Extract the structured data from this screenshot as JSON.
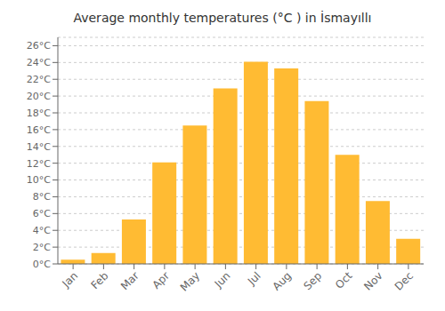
{
  "chart_data": {
    "type": "bar",
    "title": "Average monthly temperatures (°C ) in İsmayıllı",
    "categories": [
      "Jan",
      "Feb",
      "Mar",
      "Apr",
      "May",
      "Jun",
      "Jul",
      "Aug",
      "Sep",
      "Oct",
      "Nov",
      "Dec"
    ],
    "values": [
      0.5,
      1.3,
      5.3,
      12.1,
      16.5,
      20.9,
      24.1,
      23.3,
      19.4,
      13.0,
      7.5,
      3.0
    ],
    "color": "#FFBB33",
    "ylim": [
      0,
      27
    ],
    "yticks": [
      {
        "value": 0,
        "label": "0°C"
      },
      {
        "value": 2,
        "label": "2°C"
      },
      {
        "value": 4,
        "label": "4°C"
      },
      {
        "value": 6,
        "label": "6°C"
      },
      {
        "value": 8,
        "label": "8°C"
      },
      {
        "value": 10,
        "label": "10°C"
      },
      {
        "value": 12,
        "label": "12°C"
      },
      {
        "value": 14,
        "label": "14°C"
      },
      {
        "value": 16,
        "label": "16°C"
      },
      {
        "value": 18,
        "label": "18°C"
      },
      {
        "value": 20,
        "label": "20°C"
      },
      {
        "value": 22,
        "label": "22°C"
      },
      {
        "value": 24,
        "label": "24°C"
      },
      {
        "value": 26,
        "label": "26°C"
      }
    ],
    "grid": true
  }
}
